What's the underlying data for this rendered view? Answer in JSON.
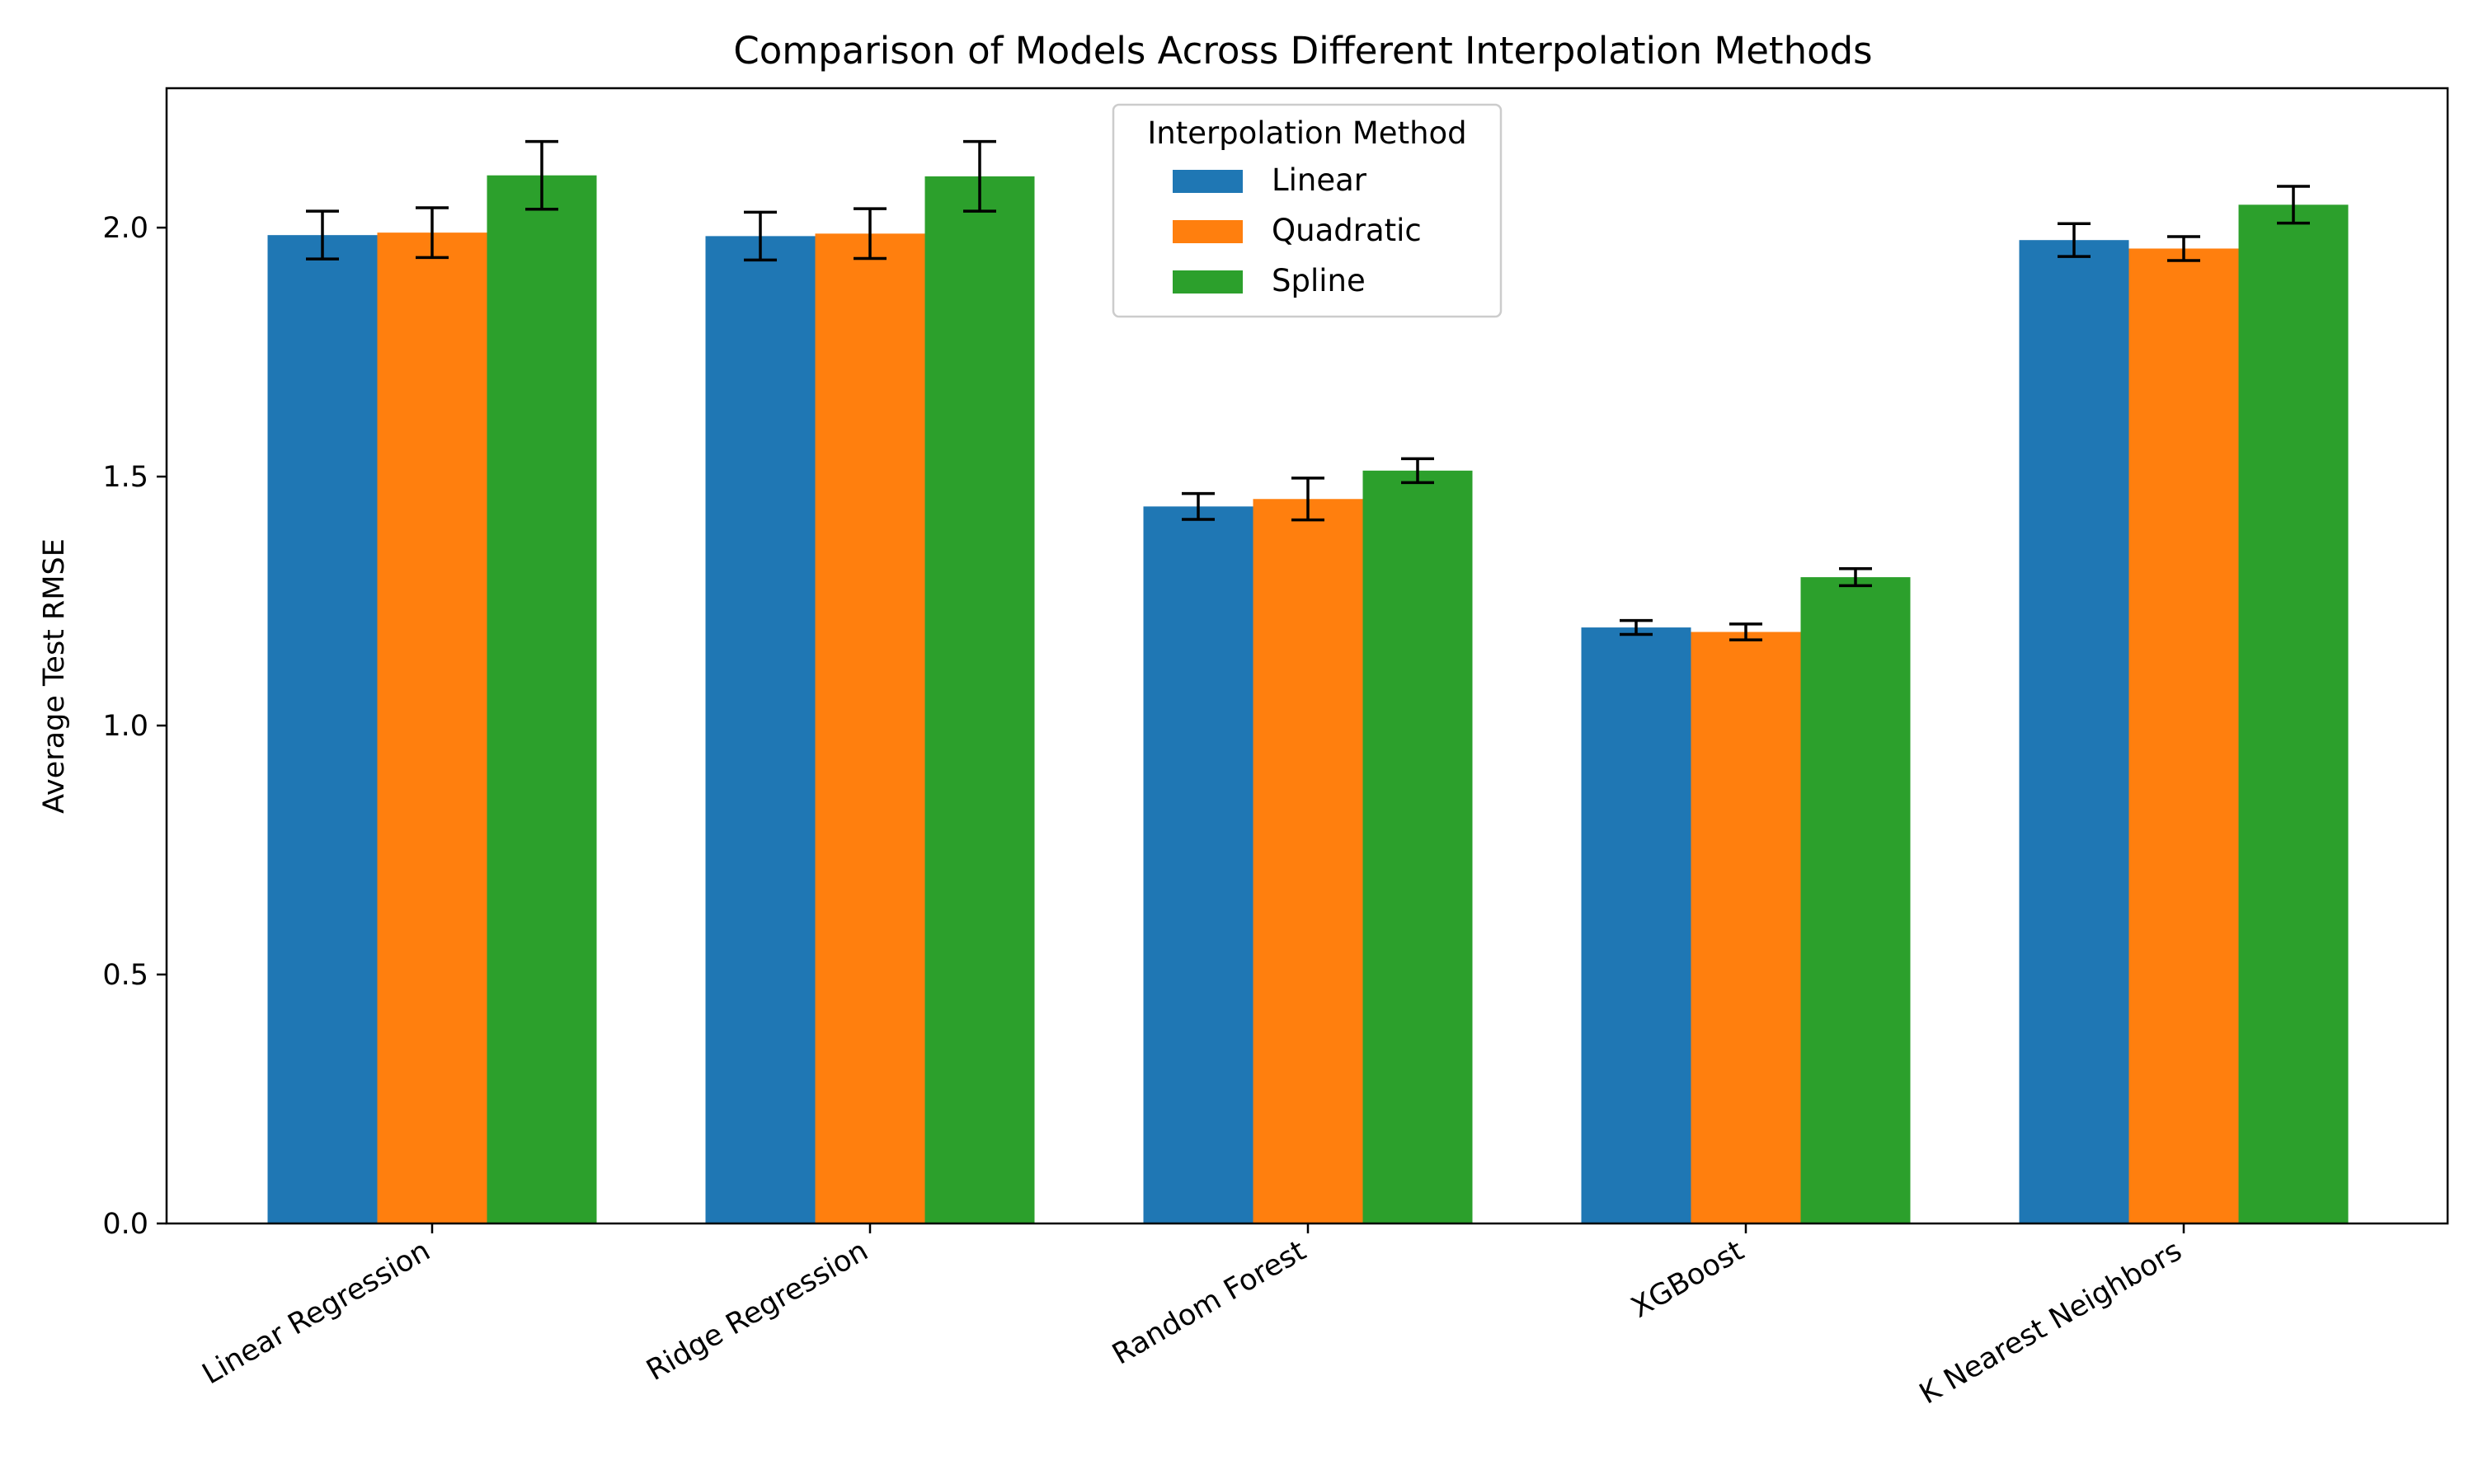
{
  "chart_data": {
    "type": "bar",
    "title": "Comparison of Models Across Different Interpolation Methods",
    "xlabel": "",
    "ylabel": "Average Test RMSE",
    "ylim": [
      0,
      2.28
    ],
    "yticks": [
      0.0,
      0.5,
      1.0,
      1.5,
      2.0
    ],
    "ytick_labels": [
      "0.0",
      "0.5",
      "1.0",
      "1.5",
      "2.0"
    ],
    "categories": [
      "Linear Regression",
      "Ridge Regression",
      "Random Forest",
      "XGBoost",
      "K Nearest Neighbors"
    ],
    "legend": {
      "title": "Interpolation Method",
      "position": "upper-center"
    },
    "grid": false,
    "series": [
      {
        "name": "Linear",
        "color": "#1f77b4",
        "values": [
          1.985,
          1.983,
          1.44,
          1.197,
          1.975
        ],
        "errors": [
          0.048,
          0.048,
          0.026,
          0.014,
          0.033
        ]
      },
      {
        "name": "Quadratic",
        "color": "#ff7f0e",
        "values": [
          1.99,
          1.988,
          1.455,
          1.188,
          1.958
        ],
        "errors": [
          0.05,
          0.05,
          0.042,
          0.016,
          0.024
        ]
      },
      {
        "name": "Spline",
        "color": "#2ca02c",
        "values": [
          2.105,
          2.103,
          1.512,
          1.298,
          2.046
        ],
        "errors": [
          0.068,
          0.07,
          0.024,
          0.017,
          0.037
        ]
      }
    ]
  }
}
